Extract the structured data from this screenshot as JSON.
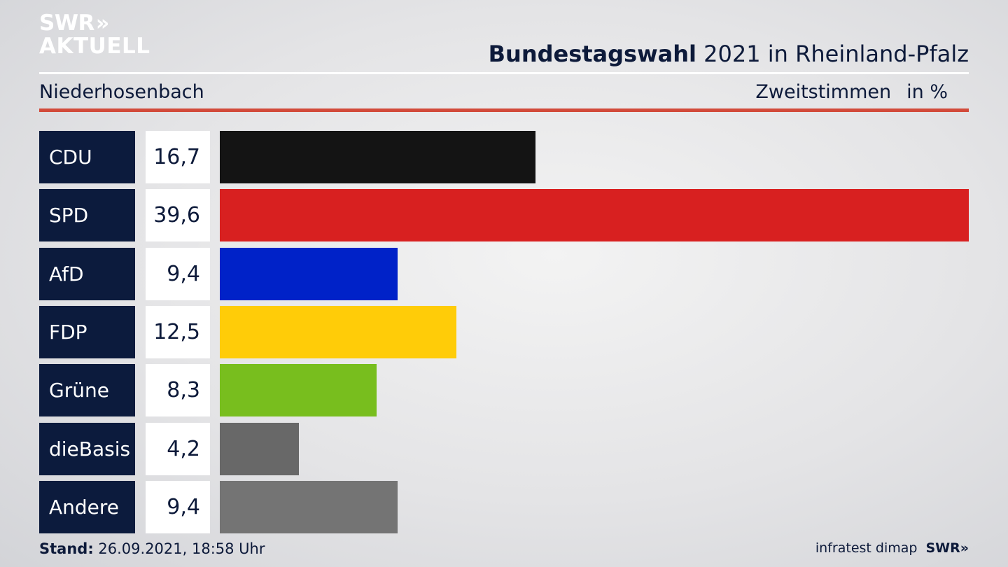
{
  "logo": {
    "line1": "SWR",
    "chevrons": "»",
    "line2": "AKTUELL"
  },
  "header": {
    "title_bold": "Bundestagswahl",
    "title_rest": " 2021 in Rheinland-Pfalz"
  },
  "subheader": {
    "location": "Niederhosenbach",
    "vote_type": "Zweitstimmen",
    "unit": "in %"
  },
  "footer": {
    "stand_label": "Stand:",
    "stand_value": " 26.09.2021, 18:58 Uhr",
    "source": "infratest dimap",
    "brand": "SWR»"
  },
  "chart_data": {
    "type": "bar",
    "orientation": "horizontal",
    "categories": [
      "CDU",
      "SPD",
      "AfD",
      "FDP",
      "Grüne",
      "dieBasis",
      "Andere"
    ],
    "values": [
      16.7,
      39.6,
      9.4,
      12.5,
      8.3,
      4.2,
      9.4
    ],
    "value_labels": [
      "16,7",
      "39,6",
      "9,4",
      "12,5",
      "8,3",
      "4,2",
      "9,4"
    ],
    "colors": [
      "#141414",
      "#d82020",
      "#0022c8",
      "#ffcc08",
      "#78be1e",
      "#686868",
      "#747474"
    ],
    "xlim": [
      0,
      39.6
    ],
    "grid": false,
    "legend": "none"
  }
}
